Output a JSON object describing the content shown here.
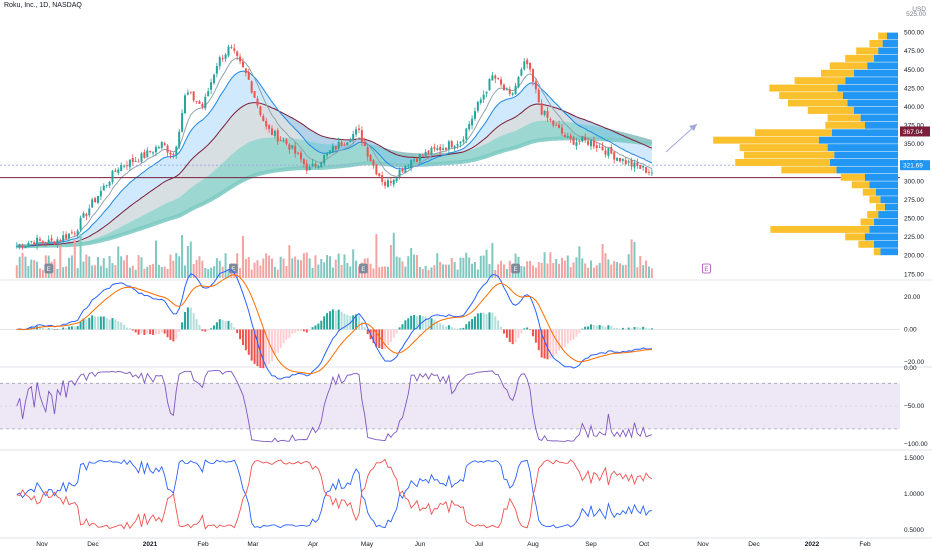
{
  "header": {
    "title": "Roku, Inc., 1D, NASDAQ"
  },
  "colors": {
    "up": "#26a69a",
    "down": "#ef5350",
    "up_vol": "#7fc8c0",
    "down_vol": "#f4a3a1",
    "macd_line": "#2962ff",
    "signal_line": "#ff6d00",
    "wr_line": "#7e57c2",
    "wr_band": "#ede7f6",
    "bull_power": "#2962ff",
    "bear_power": "#ef5350",
    "vp_up": "#2196f3",
    "vp_down": "#fbc02d",
    "hline": "#7b1f3a",
    "arrow": "#9fa8da"
  },
  "chart_data": [
    {
      "type": "candlestick",
      "title": "Roku, Inc., 1D, NASDAQ",
      "currency": "USD",
      "y_ticks": [
        175,
        200,
        225,
        250,
        275,
        300,
        325,
        350,
        375,
        400,
        425,
        450,
        475,
        500,
        525
      ],
      "ylim": [
        170,
        525
      ],
      "x_labels": [
        "Nov",
        "Dec",
        "2021",
        "Feb",
        "Mar",
        "Apr",
        "May",
        "Jun",
        "Jul",
        "Aug",
        "Sep",
        "Oct",
        "Nov",
        "Dec",
        "2022",
        "Feb"
      ],
      "x_label_dates": [
        "2020-11-01",
        "2020-12-01",
        "2021-01-01",
        "2021-02-01",
        "2021-03-01",
        "2021-04-01",
        "2021-05-01",
        "2021-06-01",
        "2021-07-01",
        "2021-08-01",
        "2021-09-01",
        "2021-10-01",
        "2021-11-01",
        "2021-12-01",
        "2022-01-01",
        "2022-02-01"
      ],
      "close_path": [
        [
          "2020-10-15",
          213
        ],
        [
          "2020-10-26",
          220
        ],
        [
          "2020-11-06",
          218
        ],
        [
          "2020-11-20",
          232
        ],
        [
          "2020-12-01",
          272
        ],
        [
          "2020-12-15",
          320
        ],
        [
          "2020-12-28",
          333
        ],
        [
          "2021-01-08",
          350
        ],
        [
          "2021-01-15",
          335
        ],
        [
          "2021-01-22",
          420
        ],
        [
          "2021-02-01",
          400
        ],
        [
          "2021-02-09",
          460
        ],
        [
          "2021-02-16",
          480
        ],
        [
          "2021-02-26",
          440
        ],
        [
          "2021-03-08",
          370
        ],
        [
          "2021-03-19",
          350
        ],
        [
          "2021-03-30",
          315
        ],
        [
          "2021-04-12",
          343
        ],
        [
          "2021-04-26",
          368
        ],
        [
          "2021-05-05",
          320
        ],
        [
          "2021-05-12",
          295
        ],
        [
          "2021-05-26",
          328
        ],
        [
          "2021-06-09",
          342
        ],
        [
          "2021-06-22",
          356
        ],
        [
          "2021-07-01",
          405
        ],
        [
          "2021-07-09",
          442
        ],
        [
          "2021-07-19",
          412
        ],
        [
          "2021-07-28",
          462
        ],
        [
          "2021-08-06",
          392
        ],
        [
          "2021-08-20",
          355
        ],
        [
          "2021-09-01",
          353
        ],
        [
          "2021-09-14",
          335
        ],
        [
          "2021-09-24",
          322
        ],
        [
          "2021-10-06",
          312
        ]
      ],
      "price_labels": [
        {
          "value": 367.04,
          "text": "367.04",
          "color": "#7b1f3a"
        },
        {
          "value": 321.69,
          "text": "321.69",
          "color": "#2196f3"
        }
      ],
      "horizontal_line": 305,
      "earnings_markers": [
        "2020-11-05",
        "2021-02-18",
        "2021-04-29",
        "2021-07-22",
        "2021-11-03"
      ],
      "earnings_label": "E"
    },
    {
      "type": "bar",
      "name": "volume_profile",
      "rows": [
        {
          "price": 495,
          "up": 10,
          "down": 8
        },
        {
          "price": 485,
          "up": 14,
          "down": 12
        },
        {
          "price": 475,
          "up": 18,
          "down": 20
        },
        {
          "price": 465,
          "up": 22,
          "down": 26
        },
        {
          "price": 455,
          "up": 28,
          "down": 34
        },
        {
          "price": 445,
          "up": 40,
          "down": 30
        },
        {
          "price": 435,
          "up": 48,
          "down": 46
        },
        {
          "price": 425,
          "up": 55,
          "down": 62
        },
        {
          "price": 415,
          "up": 50,
          "down": 58
        },
        {
          "price": 405,
          "up": 46,
          "down": 54
        },
        {
          "price": 395,
          "up": 40,
          "down": 42
        },
        {
          "price": 385,
          "up": 34,
          "down": 30
        },
        {
          "price": 375,
          "up": 30,
          "down": 36
        },
        {
          "price": 365,
          "up": 60,
          "down": 70
        },
        {
          "price": 355,
          "up": 72,
          "down": 96
        },
        {
          "price": 345,
          "up": 64,
          "down": 80
        },
        {
          "price": 335,
          "up": 58,
          "down": 82
        },
        {
          "price": 325,
          "up": 62,
          "down": 86
        },
        {
          "price": 315,
          "up": 56,
          "down": 50
        },
        {
          "price": 305,
          "up": 30,
          "down": 22
        },
        {
          "price": 295,
          "up": 26,
          "down": 16
        },
        {
          "price": 285,
          "up": 20,
          "down": 12
        },
        {
          "price": 275,
          "up": 16,
          "down": 10
        },
        {
          "price": 265,
          "up": 12,
          "down": 8
        },
        {
          "price": 255,
          "up": 18,
          "down": 10
        },
        {
          "price": 245,
          "up": 22,
          "down": 12
        },
        {
          "price": 235,
          "up": 26,
          "down": 90
        },
        {
          "price": 225,
          "up": 30,
          "down": 18
        },
        {
          "price": 215,
          "up": 22,
          "down": 14
        },
        {
          "price": 205,
          "up": 16,
          "down": 6
        }
      ]
    },
    {
      "type": "line",
      "name": "MACD",
      "y_ticks": [
        20,
        0,
        -20
      ],
      "y_tick_labels": [
        "20.00",
        "0.00",
        "−20.00"
      ],
      "ylim": [
        -22,
        30
      ]
    },
    {
      "type": "line",
      "name": "Williams %R",
      "y_ticks": [
        0,
        -50,
        -100
      ],
      "y_tick_labels": [
        "0.00",
        "−50.00",
        "−100.00"
      ],
      "ylim": [
        -105,
        0
      ],
      "bands": [
        -20,
        -80
      ]
    },
    {
      "type": "line",
      "name": "Bull/Bear Power",
      "y_ticks": [
        1.5,
        1.0,
        0.5
      ],
      "y_tick_labels": [
        "1.5000",
        "1.0000",
        "0.5000"
      ],
      "ylim": [
        0.4,
        1.6
      ]
    }
  ]
}
